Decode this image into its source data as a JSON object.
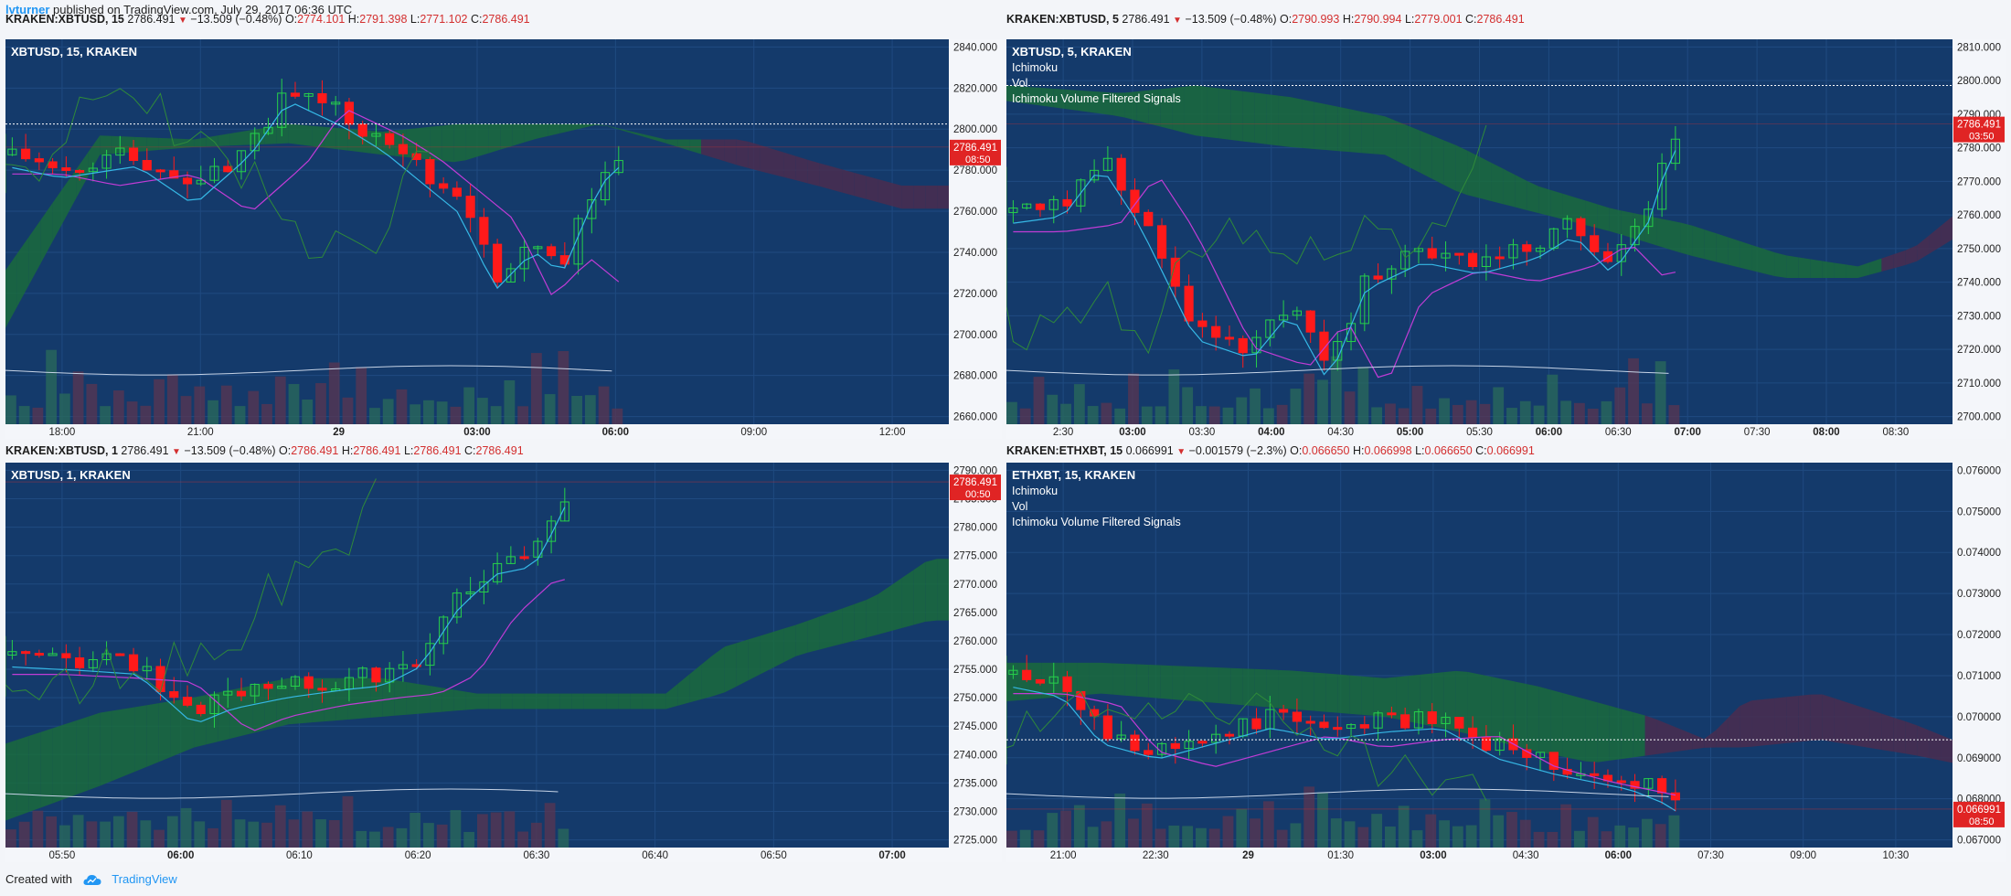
{
  "header": {
    "user": "lvturner",
    "published": "published on TradingView.com, July 29, 2017 06:36 UTC"
  },
  "footer": {
    "created_with": "Created with",
    "brand": "TradingView"
  },
  "panels": [
    {
      "headline": {
        "symbol": "KRAKEN:XBTUSD, 15",
        "price": "2786.491",
        "change": "−13.509 (−0.48%)",
        "o": "2774.101",
        "h": "2791.398",
        "l": "2771.102",
        "c": "2786.491"
      },
      "legend": [
        "XBTUSD, 15, KRAKEN"
      ],
      "price_label": "2786.491",
      "countdown": "08:50",
      "chart_data": {
        "type": "candlestick",
        "title": "XBTUSD, 15, KRAKEN",
        "ylim": [
          2645,
          2845
        ],
        "yticks": [
          "2840.000",
          "2820.000",
          "2800.000",
          "2780.000",
          "2760.000",
          "2740.000",
          "2720.000",
          "2700.000",
          "2680.000",
          "2660.000"
        ],
        "xticks": [
          "18:00",
          "21:00",
          "29",
          "03:00",
          "06:00",
          "09:00",
          "12:00"
        ],
        "last_price": 2786.491,
        "reference_line": 2800
      }
    },
    {
      "headline": {
        "symbol": "KRAKEN:XBTUSD, 5",
        "price": "2786.491",
        "change": "−13.509 (−0.48%)",
        "o": "2790.993",
        "h": "2790.994",
        "l": "2779.001",
        "c": "2786.491"
      },
      "legend": [
        "XBTUSD, 5, KRAKEN",
        "Ichimoku",
        "Vol",
        "Ichimoku Volume Filtered Signals"
      ],
      "price_label": "2786.491",
      "countdown": "03:50",
      "chart_data": {
        "type": "candlestick",
        "title": "XBTUSD, 5, KRAKEN",
        "ylim": [
          2695,
          2812
        ],
        "yticks": [
          "2810.000",
          "2800.000",
          "2790.000",
          "2780.000",
          "2770.000",
          "2760.000",
          "2750.000",
          "2740.000",
          "2730.000",
          "2720.000",
          "2710.000",
          "2700.000"
        ],
        "xticks": [
          "2:30",
          "03:00",
          "03:30",
          "04:00",
          "04:30",
          "05:00",
          "05:30",
          "06:00",
          "06:30",
          "07:00",
          "07:30",
          "08:00",
          "08:30"
        ],
        "last_price": 2786.491,
        "reference_line": 2800
      }
    },
    {
      "headline": {
        "symbol": "KRAKEN:XBTUSD, 1",
        "price": "2786.491",
        "change": "−13.509 (−0.48%)",
        "o": "2786.491",
        "h": "2786.491",
        "l": "2786.491",
        "c": "2786.491"
      },
      "legend": [
        "XBTUSD, 1, KRAKEN"
      ],
      "price_label": "2786.491",
      "countdown": "00:50",
      "chart_data": {
        "type": "candlestick",
        "title": "XBTUSD, 1, KRAKEN",
        "ylim": [
          2722,
          2792
        ],
        "yticks": [
          "2790.000",
          "2785.000",
          "2780.000",
          "2775.000",
          "2770.000",
          "2765.000",
          "2760.000",
          "2755.000",
          "2750.000",
          "2745.000",
          "2740.000",
          "2735.000",
          "2730.000",
          "2725.000"
        ],
        "xticks": [
          "05:50",
          "06:00",
          "06:10",
          "06:20",
          "06:30",
          "06:40",
          "06:50",
          "07:00"
        ],
        "last_price": 2786.491
      }
    },
    {
      "headline": {
        "symbol": "KRAKEN:ETHXBT, 15",
        "price": "0.066991",
        "change": "−0.001579 (−2.3%)",
        "o": "0.066650",
        "h": "0.066998",
        "l": "0.066650",
        "c": "0.066991"
      },
      "legend": [
        "ETHXBT, 15, KRAKEN",
        "Ichimoku",
        "Vol",
        "Ichimoku Volume Filtered Signals"
      ],
      "price_label": "0.066991",
      "countdown": "08:50",
      "chart_data": {
        "type": "candlestick",
        "title": "ETHXBT, 15, KRAKEN",
        "ylim": [
          0.0661,
          0.0761
        ],
        "yticks": [
          "0.076000",
          "0.075000",
          "0.074000",
          "0.073000",
          "0.072000",
          "0.071000",
          "0.070000",
          "0.069000",
          "0.068000",
          "0.067000"
        ],
        "xticks": [
          "21:00",
          "22:30",
          "29",
          "01:30",
          "03:00",
          "04:30",
          "06:00",
          "07:30",
          "09:00",
          "10:30"
        ],
        "last_price": 0.066991,
        "reference_line": 0.0688
      }
    }
  ]
}
